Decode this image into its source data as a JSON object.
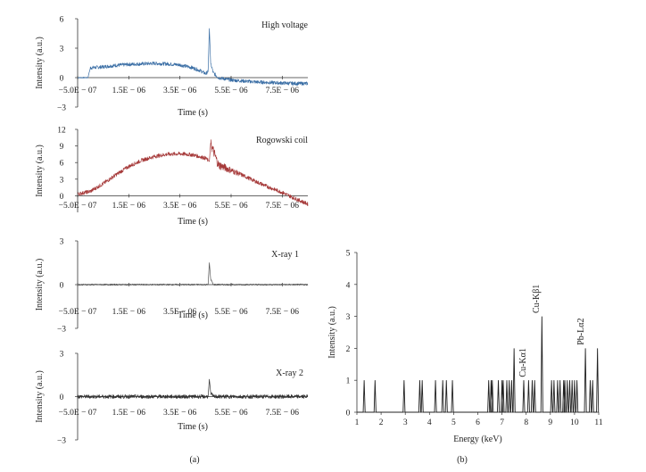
{
  "chart_data": [
    {
      "id": "high-voltage",
      "type": "line",
      "label": "High voltage",
      "xlabel": "Time (s)",
      "ylabel": "Intensity (a.u.)",
      "xlim": [
        -5e-07,
        8.5e-06
      ],
      "ylim": [
        -3,
        6
      ],
      "x_ticks": [
        "−5.0E − 07",
        "1.5E − 06",
        "3.5E − 06",
        "5.5E − 06",
        "7.5E − 06"
      ],
      "y_ticks": [
        "−3",
        "0",
        "3",
        "6"
      ],
      "color": "#3a6ea5",
      "noise": 0.18,
      "x": [
        -5e-07,
        -3.5e-07,
        -2e-07,
        -1e-07,
        0,
        5e-07,
        1e-06,
        1.5e-06,
        2e-06,
        2.5e-06,
        3e-06,
        3.5e-06,
        4e-06,
        4.3e-06,
        4.5e-06,
        4.6e-06,
        4.65e-06,
        4.7e-06,
        4.8e-06,
        5e-06,
        5.5e-06,
        6e-06,
        6.5e-06,
        7e-06,
        7.5e-06,
        8e-06,
        8.5e-06
      ],
      "y": [
        0,
        0,
        0,
        0,
        1.0,
        1.1,
        1.25,
        1.35,
        1.4,
        1.45,
        1.4,
        1.3,
        1.0,
        0.7,
        0.4,
        0.6,
        5.0,
        1.5,
        0.5,
        0.0,
        -0.25,
        -0.35,
        -0.45,
        -0.5,
        -0.55,
        -0.6,
        -0.6
      ]
    },
    {
      "id": "rogowski-coil",
      "type": "line",
      "label": "Rogowski coil",
      "xlabel": "Time (s)",
      "ylabel": "Intensity (a.u.)",
      "xlim": [
        -5e-07,
        8.5e-06
      ],
      "ylim": [
        -3,
        12
      ],
      "x_ticks": [
        "−5.0E − 07",
        "1.5E − 06",
        "3.5E − 06",
        "5.5E − 06",
        "7.5E − 06"
      ],
      "y_ticks": [
        "0",
        "3",
        "6",
        "9",
        "12"
      ],
      "color": "#a63a3a",
      "noise": 0.35,
      "x": [
        -5e-07,
        0,
        5e-07,
        1e-06,
        1.5e-06,
        2e-06,
        2.5e-06,
        3e-06,
        3.5e-06,
        4e-06,
        4.5e-06,
        4.65e-06,
        4.7e-06,
        5e-06,
        5.5e-06,
        6e-06,
        6.5e-06,
        7e-06,
        7.5e-06,
        8e-06,
        8.5e-06
      ],
      "y": [
        0.3,
        0.8,
        2.2,
        3.8,
        5.3,
        6.4,
        7.1,
        7.5,
        7.6,
        7.4,
        6.8,
        6.2,
        9.5,
        5.6,
        4.6,
        3.6,
        2.5,
        1.5,
        0.6,
        -0.5,
        -1.5
      ]
    },
    {
      "id": "x-ray-1",
      "type": "line",
      "label": "X-ray 1",
      "xlabel": "Time (s)",
      "ylabel": "Intensity (a.u.)",
      "xlim": [
        -5e-07,
        8.5e-06
      ],
      "ylim": [
        -3,
        3
      ],
      "x_ticks": [
        "−5.0E − 07",
        "1.5E − 06",
        "3.5E − 06",
        "5.5E − 06",
        "7.5E − 06"
      ],
      "y_ticks": [
        "−3",
        "0",
        "3"
      ],
      "color": "#555555",
      "noise": 0.05,
      "x": [
        -5e-07,
        4.6e-06,
        4.65e-06,
        4.7e-06,
        4.8e-06,
        8.5e-06
      ],
      "y": [
        0,
        0,
        1.5,
        0.4,
        0,
        0
      ]
    },
    {
      "id": "x-ray-2",
      "type": "line",
      "label": "X-ray 2",
      "xlabel": "Time (s)",
      "ylabel": "Intensity (a.u.)",
      "xlim": [
        -5e-07,
        8.5e-06
      ],
      "ylim": [
        -3,
        3
      ],
      "x_ticks": [
        "−5.0E − 07",
        "1.5E − 06",
        "3.5E − 06",
        "5.5E − 06",
        "7.5E − 06"
      ],
      "y_ticks": [
        "−3",
        "0",
        "3"
      ],
      "color": "#333333",
      "noise": 0.13,
      "x": [
        -5e-07,
        4.6e-06,
        4.65e-06,
        4.7e-06,
        4.8e-06,
        8.5e-06
      ],
      "y": [
        0,
        0,
        1.2,
        0.3,
        0,
        0
      ]
    },
    {
      "id": "energy-spectrum",
      "type": "line",
      "xlabel": "Energy (keV)",
      "ylabel": "Intensity (a.u.)",
      "xlim": [
        1,
        11
      ],
      "ylim": [
        0,
        5
      ],
      "x_ticks": [
        1,
        2,
        3,
        4,
        5,
        6,
        7,
        8,
        9,
        10,
        11
      ],
      "y_ticks": [
        0,
        1,
        2,
        3,
        4,
        5
      ],
      "color": "#222222",
      "x": [
        1.3,
        1.75,
        2.95,
        3.6,
        3.7,
        4.25,
        4.55,
        4.7,
        4.95,
        6.45,
        6.55,
        6.6,
        6.85,
        7.0,
        7.05,
        7.2,
        7.3,
        7.4,
        7.5,
        7.9,
        8.1,
        8.25,
        8.35,
        8.65,
        9.05,
        9.15,
        9.3,
        9.4,
        9.55,
        9.6,
        9.7,
        9.8,
        9.9,
        10.0,
        10.1,
        10.45,
        10.65,
        10.75,
        10.95
      ],
      "y": [
        1,
        1,
        1,
        1,
        1,
        1,
        1,
        1,
        1,
        1,
        1,
        1,
        1,
        1,
        1,
        1,
        1,
        1,
        2,
        1,
        1,
        1,
        1,
        3,
        1,
        1,
        1,
        1,
        1,
        1,
        1,
        1,
        1,
        1,
        1,
        2,
        1,
        1,
        2
      ],
      "annotations": [
        {
          "text": "Cu-Kα1",
          "x": 8.05,
          "y": 1.1
        },
        {
          "text": "Cu-Kβ1",
          "x": 8.6,
          "y": 3.1
        },
        {
          "text": "Pb-Lα2",
          "x": 10.45,
          "y": 2.1
        }
      ]
    }
  ],
  "panels": {
    "a": "(a)",
    "b": "(b)"
  }
}
